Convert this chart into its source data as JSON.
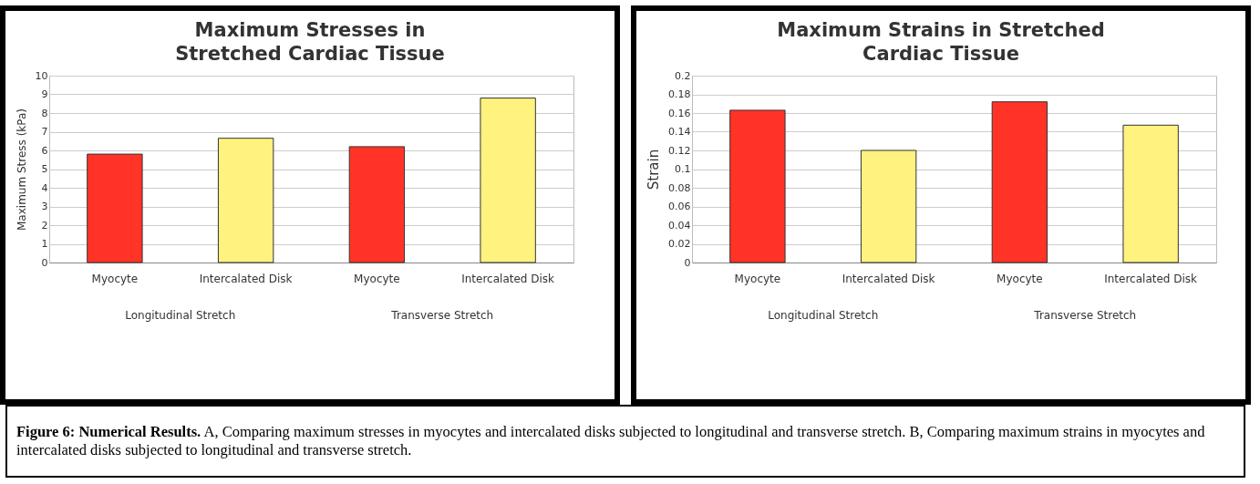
{
  "chart_data": [
    {
      "type": "bar",
      "title": "Maximum Stresses in Stretched Cardiac Tissue",
      "ylabel": "Maximum Stress (kPa)",
      "categories": [
        "Myocyte",
        "Intercalated Disk",
        "Myocyte",
        "Intercalated Disk"
      ],
      "values": [
        5.8,
        6.65,
        6.2,
        8.8
      ],
      "colors": [
        "#ff3326",
        "#fff27f",
        "#ff3326",
        "#fff27f"
      ],
      "ylim": [
        0,
        10
      ],
      "yticks": [
        0,
        1,
        2,
        3,
        4,
        5,
        6,
        7,
        8,
        9,
        10
      ],
      "grid": "y",
      "annotations": [
        "Longitudinal Stretch",
        "Transverse Stretch"
      ]
    },
    {
      "type": "bar",
      "title": "Maximum Strains in Stretched Cardiac Tissue",
      "ylabel": "Strain",
      "categories": [
        "Myocyte",
        "Intercalated Disk",
        "Myocyte",
        "Intercalated Disk"
      ],
      "values": [
        0.163,
        0.12,
        0.172,
        0.147
      ],
      "colors": [
        "#ff3326",
        "#fff27f",
        "#ff3326",
        "#fff27f"
      ],
      "ylim": [
        0,
        0.2
      ],
      "yticks": [
        0,
        0.02,
        0.04,
        0.06,
        0.08,
        0.1,
        0.12,
        0.14,
        0.16,
        0.18,
        0.2
      ],
      "grid": "y",
      "annotations": [
        "Longitudinal Stretch",
        "Transverse Stretch"
      ]
    },
    {
      "type": "other",
      "annotations": [
        "Figure 6: Numerical Results.",
        "A, Comparing maximum stresses in myocytes and intercalated disks subjected to longitudinal and transverse stretch. B, Comparing maximum strains in myocytes and intercalated disks subjected to longitudinal and transverse stretch."
      ]
    }
  ]
}
